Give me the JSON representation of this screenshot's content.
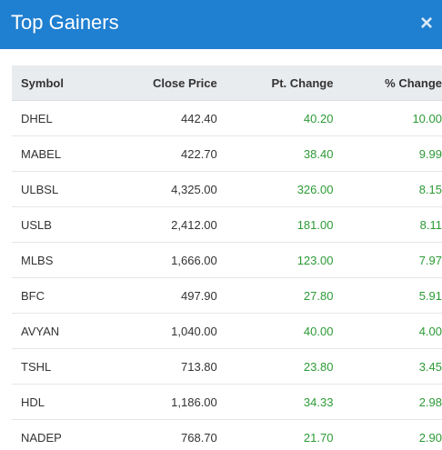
{
  "modal": {
    "title": "Top Gainers",
    "close_symbol": "×"
  },
  "table": {
    "headers": [
      "Symbol",
      "Close Price",
      "Pt. Change",
      "% Change"
    ],
    "rows": [
      {
        "symbol": "DHEL",
        "close": "442.40",
        "pt": "40.20",
        "pct": "10.00"
      },
      {
        "symbol": "MABEL",
        "close": "422.70",
        "pt": "38.40",
        "pct": "9.99"
      },
      {
        "symbol": "ULBSL",
        "close": "4,325.00",
        "pt": "326.00",
        "pct": "8.15"
      },
      {
        "symbol": "USLB",
        "close": "2,412.00",
        "pt": "181.00",
        "pct": "8.11"
      },
      {
        "symbol": "MLBS",
        "close": "1,666.00",
        "pt": "123.00",
        "pct": "7.97"
      },
      {
        "symbol": "BFC",
        "close": "497.90",
        "pt": "27.80",
        "pct": "5.91"
      },
      {
        "symbol": "AVYAN",
        "close": "1,040.00",
        "pt": "40.00",
        "pct": "4.00"
      },
      {
        "symbol": "TSHL",
        "close": "713.80",
        "pt": "23.80",
        "pct": "3.45"
      },
      {
        "symbol": "HDL",
        "close": "1,186.00",
        "pt": "34.33",
        "pct": "2.98"
      },
      {
        "symbol": "NADEP",
        "close": "768.70",
        "pt": "21.70",
        "pct": "2.90"
      }
    ]
  },
  "colors": {
    "header_bg": "#1f7fd0",
    "positive": "#2d9a36",
    "table_header_bg": "#e9ecef"
  },
  "icons": {
    "close": "close-icon"
  }
}
